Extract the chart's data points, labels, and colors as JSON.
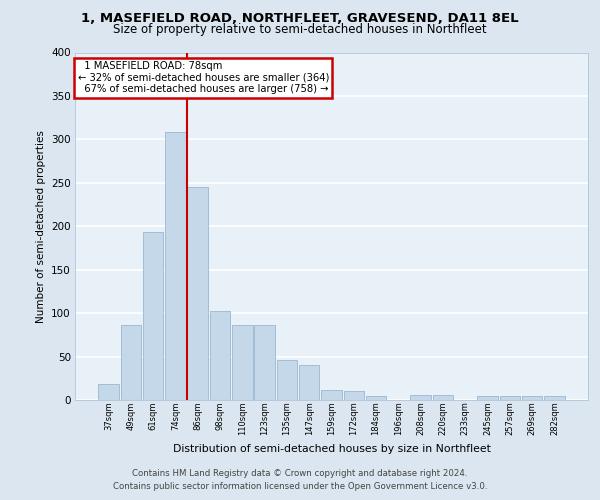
{
  "title1": "1, MASEFIELD ROAD, NORTHFLEET, GRAVESEND, DA11 8EL",
  "title2": "Size of property relative to semi-detached houses in Northfleet",
  "xlabel": "Distribution of semi-detached houses by size in Northfleet",
  "ylabel": "Number of semi-detached properties",
  "footer1": "Contains HM Land Registry data © Crown copyright and database right 2024.",
  "footer2": "Contains public sector information licensed under the Open Government Licence v3.0.",
  "categories": [
    "37sqm",
    "49sqm",
    "61sqm",
    "74sqm",
    "86sqm",
    "98sqm",
    "110sqm",
    "123sqm",
    "135sqm",
    "147sqm",
    "159sqm",
    "172sqm",
    "184sqm",
    "196sqm",
    "208sqm",
    "220sqm",
    "233sqm",
    "245sqm",
    "257sqm",
    "269sqm",
    "282sqm"
  ],
  "values": [
    18,
    86,
    193,
    308,
    245,
    103,
    86,
    86,
    46,
    40,
    11,
    10,
    5,
    0,
    6,
    6,
    0,
    5,
    5,
    5,
    5
  ],
  "bar_color": "#c5d8ea",
  "bar_edge_color": "#9ab8d0",
  "property_label": "1 MASEFIELD ROAD: 78sqm",
  "pct_smaller": 32,
  "n_smaller": 364,
  "pct_larger": 67,
  "n_larger": 758,
  "vline_x_index": 3.5,
  "annotation_box_color": "#ffffff",
  "annotation_box_edge": "#cc0000",
  "vline_color": "#cc0000",
  "bg_color": "#dce6f0",
  "plot_bg_color": "#e8f0f8",
  "grid_color": "#ffffff",
  "ylim": [
    0,
    400
  ],
  "yticks": [
    0,
    50,
    100,
    150,
    200,
    250,
    300,
    350,
    400
  ]
}
